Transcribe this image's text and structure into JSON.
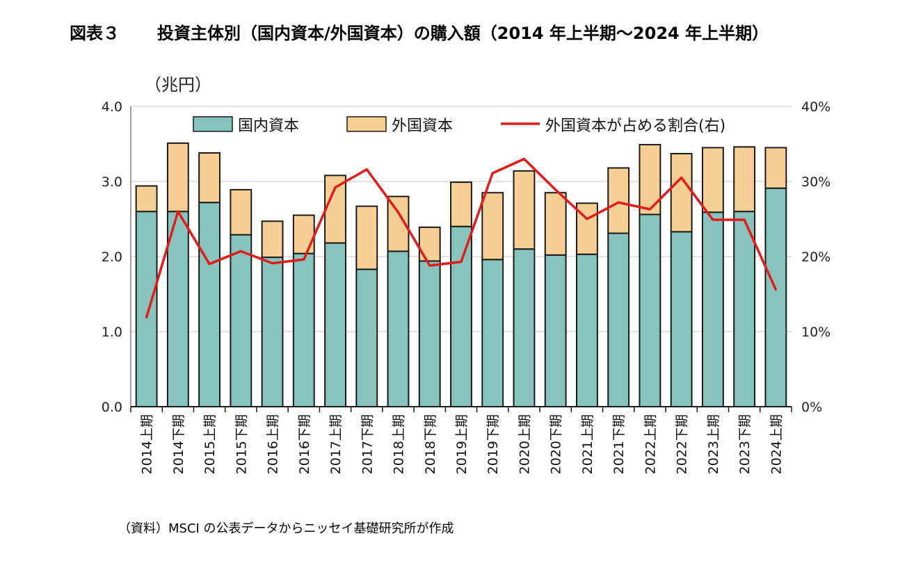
{
  "figure_label": "図表３",
  "title": "投資主体別（国内資本/外国資本）の購入額（2014 年上半期～2024 年上半期）",
  "source": "（資料）MSCI の公表データからニッセイ基礎研究所が作成",
  "colors": {
    "domestic": "#87c4bd",
    "foreign": "#f5cf93",
    "ratio_line": "#e31b1b",
    "bar_edge": "#1a1a1a",
    "grid": "#d9d9d9"
  },
  "chart_data": {
    "type": "bar",
    "stacked": true,
    "title": "投資主体別（国内資本/外国資本）の購入額（2014 年上半期～2024 年上半期）",
    "y_unit_label": "（兆円）",
    "ylim": [
      0,
      4
    ],
    "y_ticks": [
      "0.0",
      "1.0",
      "2.0",
      "3.0",
      "4.0"
    ],
    "y2lim": [
      0,
      40
    ],
    "y2_ticks": [
      "0%",
      "10%",
      "20%",
      "30%",
      "40%"
    ],
    "legend_position": "top",
    "categories": [
      "2014上期",
      "2014下期",
      "2015上期",
      "2015下期",
      "2016上期",
      "2016下期",
      "2017上期",
      "2017下期",
      "2018上期",
      "2018下期",
      "2019上期",
      "2019下期",
      "2020上期",
      "2020下期",
      "2021上期",
      "2021下期",
      "2022上期",
      "2022下期",
      "2023上期",
      "2023下期",
      "2024上期"
    ],
    "series": [
      {
        "name": "国内資本",
        "axis": "left",
        "kind": "bar",
        "values": [
          2.6,
          2.6,
          2.72,
          2.29,
          1.99,
          2.04,
          2.18,
          1.83,
          2.07,
          1.94,
          2.4,
          1.96,
          2.1,
          2.02,
          2.03,
          2.31,
          2.56,
          2.33,
          2.59,
          2.6,
          2.91
        ]
      },
      {
        "name": "外国資本",
        "axis": "left",
        "kind": "bar",
        "values": [
          0.34,
          0.91,
          0.66,
          0.6,
          0.48,
          0.51,
          0.9,
          0.84,
          0.73,
          0.45,
          0.59,
          0.89,
          1.04,
          0.83,
          0.68,
          0.87,
          0.93,
          1.04,
          0.86,
          0.86,
          0.54
        ]
      },
      {
        "name": "外国資本が占める割合(右)",
        "axis": "right",
        "kind": "line",
        "values": [
          11.9,
          26.0,
          19.0,
          20.7,
          19.1,
          19.6,
          29.2,
          31.6,
          25.9,
          18.8,
          19.3,
          31.1,
          33.0,
          28.9,
          25.0,
          27.2,
          26.3,
          30.5,
          24.9,
          24.9,
          15.6
        ]
      }
    ]
  }
}
